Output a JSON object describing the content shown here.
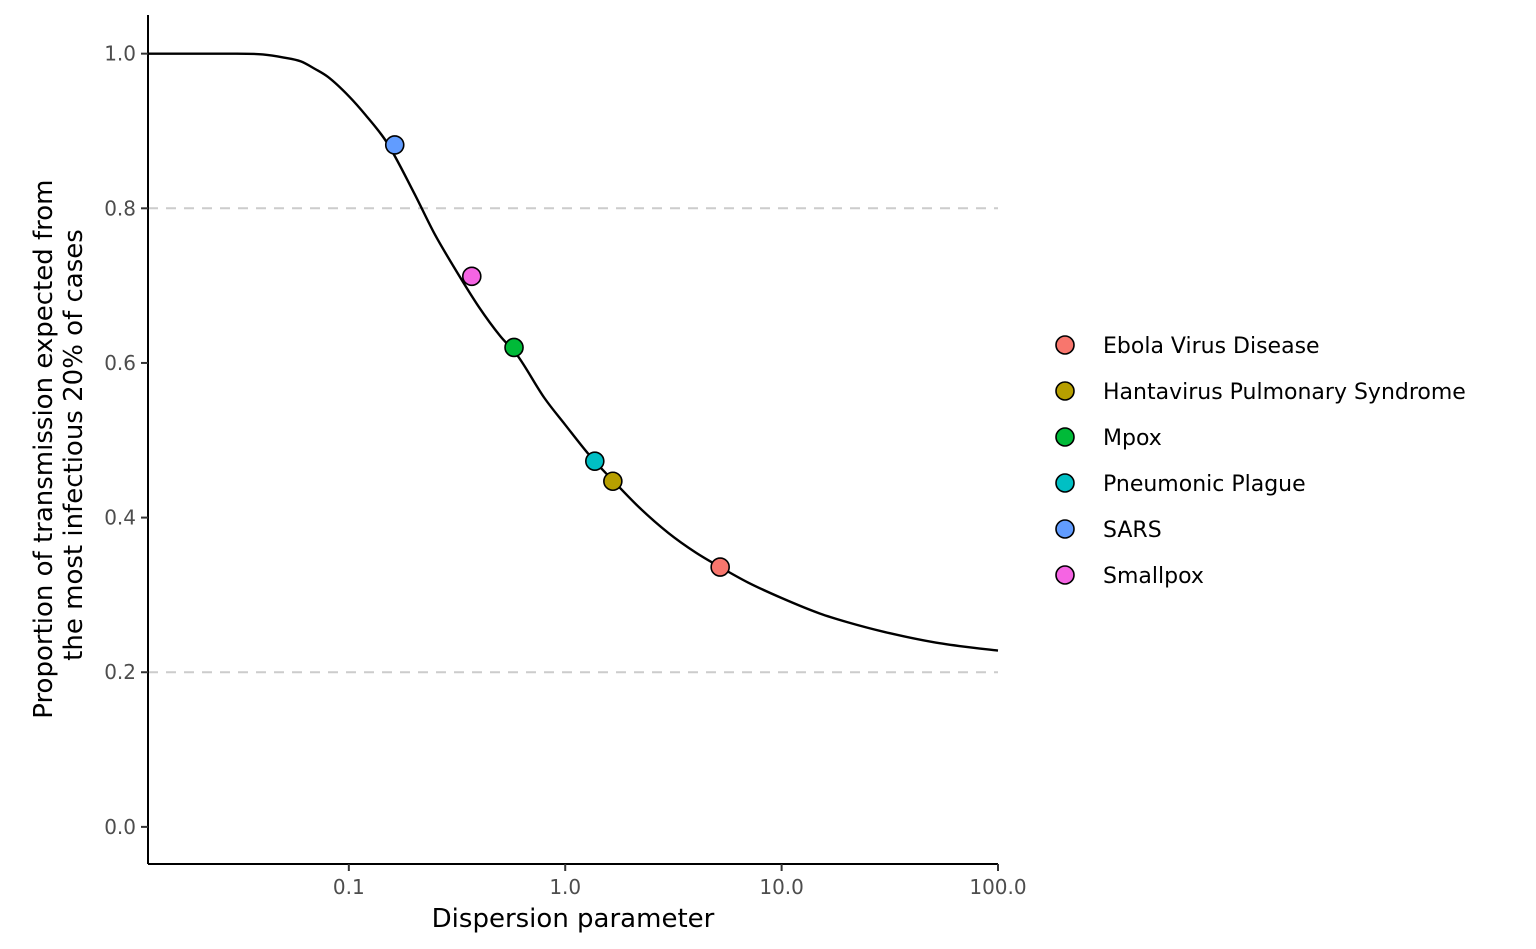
{
  "chart_data": {
    "type": "line",
    "title": "",
    "xlabel": "Dispersion parameter",
    "ylabel_lines": [
      "Proportion of transmission expected from",
      "the most infectious 20% of cases"
    ],
    "x_scale": "log10",
    "xlim": [
      0.0118,
      100
    ],
    "ylim": [
      -0.048,
      1.05
    ],
    "x_ticks": [
      0.1,
      1,
      10,
      100
    ],
    "x_tick_labels": [
      "0.1",
      "1.0",
      "10.0",
      "100.0"
    ],
    "y_ticks": [
      0,
      0.2,
      0.4,
      0.6,
      0.8,
      1.0
    ],
    "y_tick_labels": [
      "0.0",
      "0.2",
      "0.4",
      "0.6",
      "0.8",
      "1.0"
    ],
    "reference_lines": [
      0.2,
      0.8
    ],
    "curve": {
      "x": [
        0.0118,
        0.02,
        0.03,
        0.04,
        0.05,
        0.06,
        0.07,
        0.08,
        0.1,
        0.12,
        0.15,
        0.2,
        0.25,
        0.3,
        0.4,
        0.5,
        0.6,
        0.8,
        1.0,
        1.3,
        1.7,
        2.2,
        3.0,
        4.0,
        5.2,
        7.0,
        10.0,
        15.0,
        20.0,
        30.0,
        50.0,
        70.0,
        100.0
      ],
      "y": [
        1.0,
        1.0,
        1.0,
        0.999,
        0.995,
        0.99,
        0.98,
        0.97,
        0.945,
        0.92,
        0.885,
        0.82,
        0.766,
        0.728,
        0.672,
        0.635,
        0.61,
        0.555,
        0.52,
        0.48,
        0.445,
        0.413,
        0.38,
        0.355,
        0.336,
        0.316,
        0.296,
        0.276,
        0.265,
        0.252,
        0.239,
        0.233,
        0.228
      ]
    },
    "series": [
      {
        "name": "Ebola Virus Disease",
        "x": 5.2,
        "y": 0.336,
        "color": "#F8766D"
      },
      {
        "name": "Hantavirus Pulmonary Syndrome",
        "x": 1.66,
        "y": 0.447,
        "color": "#B79F00"
      },
      {
        "name": "Mpox",
        "x": 0.58,
        "y": 0.62,
        "color": "#00BA38"
      },
      {
        "name": "Pneumonic Plague",
        "x": 1.37,
        "y": 0.473,
        "color": "#00BFC4"
      },
      {
        "name": "SARS",
        "x": 0.163,
        "y": 0.882,
        "color": "#619CFF"
      },
      {
        "name": "Smallpox",
        "x": 0.37,
        "y": 0.712,
        "color": "#F564E3"
      }
    ],
    "grid": false,
    "legend_position": "right"
  }
}
